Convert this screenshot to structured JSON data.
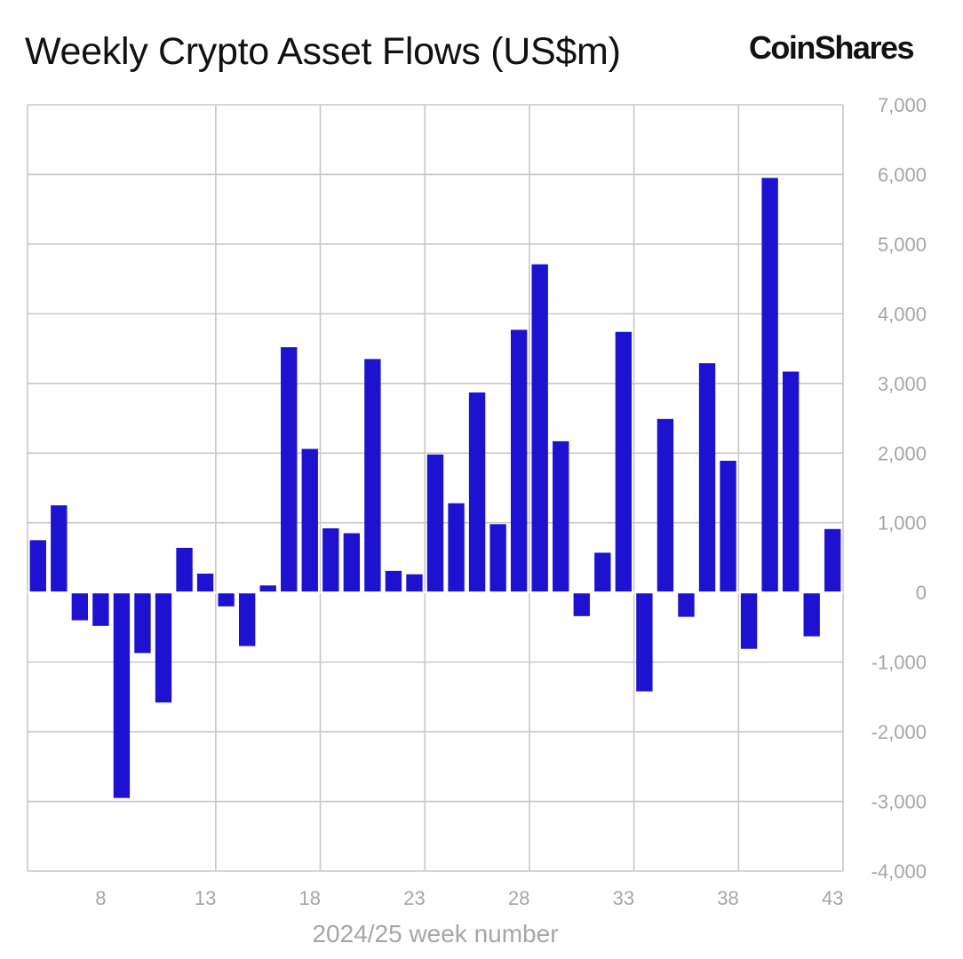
{
  "header": {
    "title": "Weekly Crypto Asset Flows (US$m)",
    "brand": "CoinShares"
  },
  "colors": {
    "bar": "#1c12d0",
    "grid": "#c8c8c8",
    "tick_text": "#a6a6a6",
    "zero_line": "#ffffff"
  },
  "chart_data": {
    "type": "bar",
    "title": "Weekly Crypto Asset Flows (US$m)",
    "xlabel": "2024/25 week number",
    "ylabel": "",
    "y_axis_side": "right",
    "ylim": [
      -4000,
      7000
    ],
    "yticks": [
      7000,
      6000,
      5000,
      4000,
      3000,
      2000,
      1000,
      0,
      -1000,
      -2000,
      -3000,
      -4000
    ],
    "ytick_labels": [
      "7,000",
      "6,000",
      "5,000",
      "4,000",
      "3,000",
      "2,000",
      "1,000",
      "0",
      "-1,000",
      "-2,000",
      "-3,000",
      "-4,000"
    ],
    "xticks": [
      8,
      13,
      18,
      23,
      28,
      33,
      38,
      43
    ],
    "grid": true,
    "categories": [
      5,
      6,
      7,
      8,
      9,
      10,
      11,
      12,
      13,
      14,
      15,
      16,
      17,
      18,
      19,
      20,
      21,
      22,
      23,
      24,
      25,
      26,
      27,
      28,
      29,
      30,
      31,
      32,
      33,
      34,
      35,
      36,
      37,
      38,
      39,
      40,
      41,
      42,
      43
    ],
    "values": [
      750,
      1250,
      -400,
      -480,
      -2950,
      -870,
      -1580,
      640,
      270,
      -200,
      -770,
      100,
      3520,
      2060,
      920,
      850,
      3350,
      310,
      260,
      1980,
      1280,
      2870,
      980,
      3770,
      4710,
      2170,
      -340,
      570,
      3740,
      -1420,
      2490,
      -350,
      3290,
      1890,
      -810,
      5950,
      3170,
      -630,
      910
    ]
  }
}
